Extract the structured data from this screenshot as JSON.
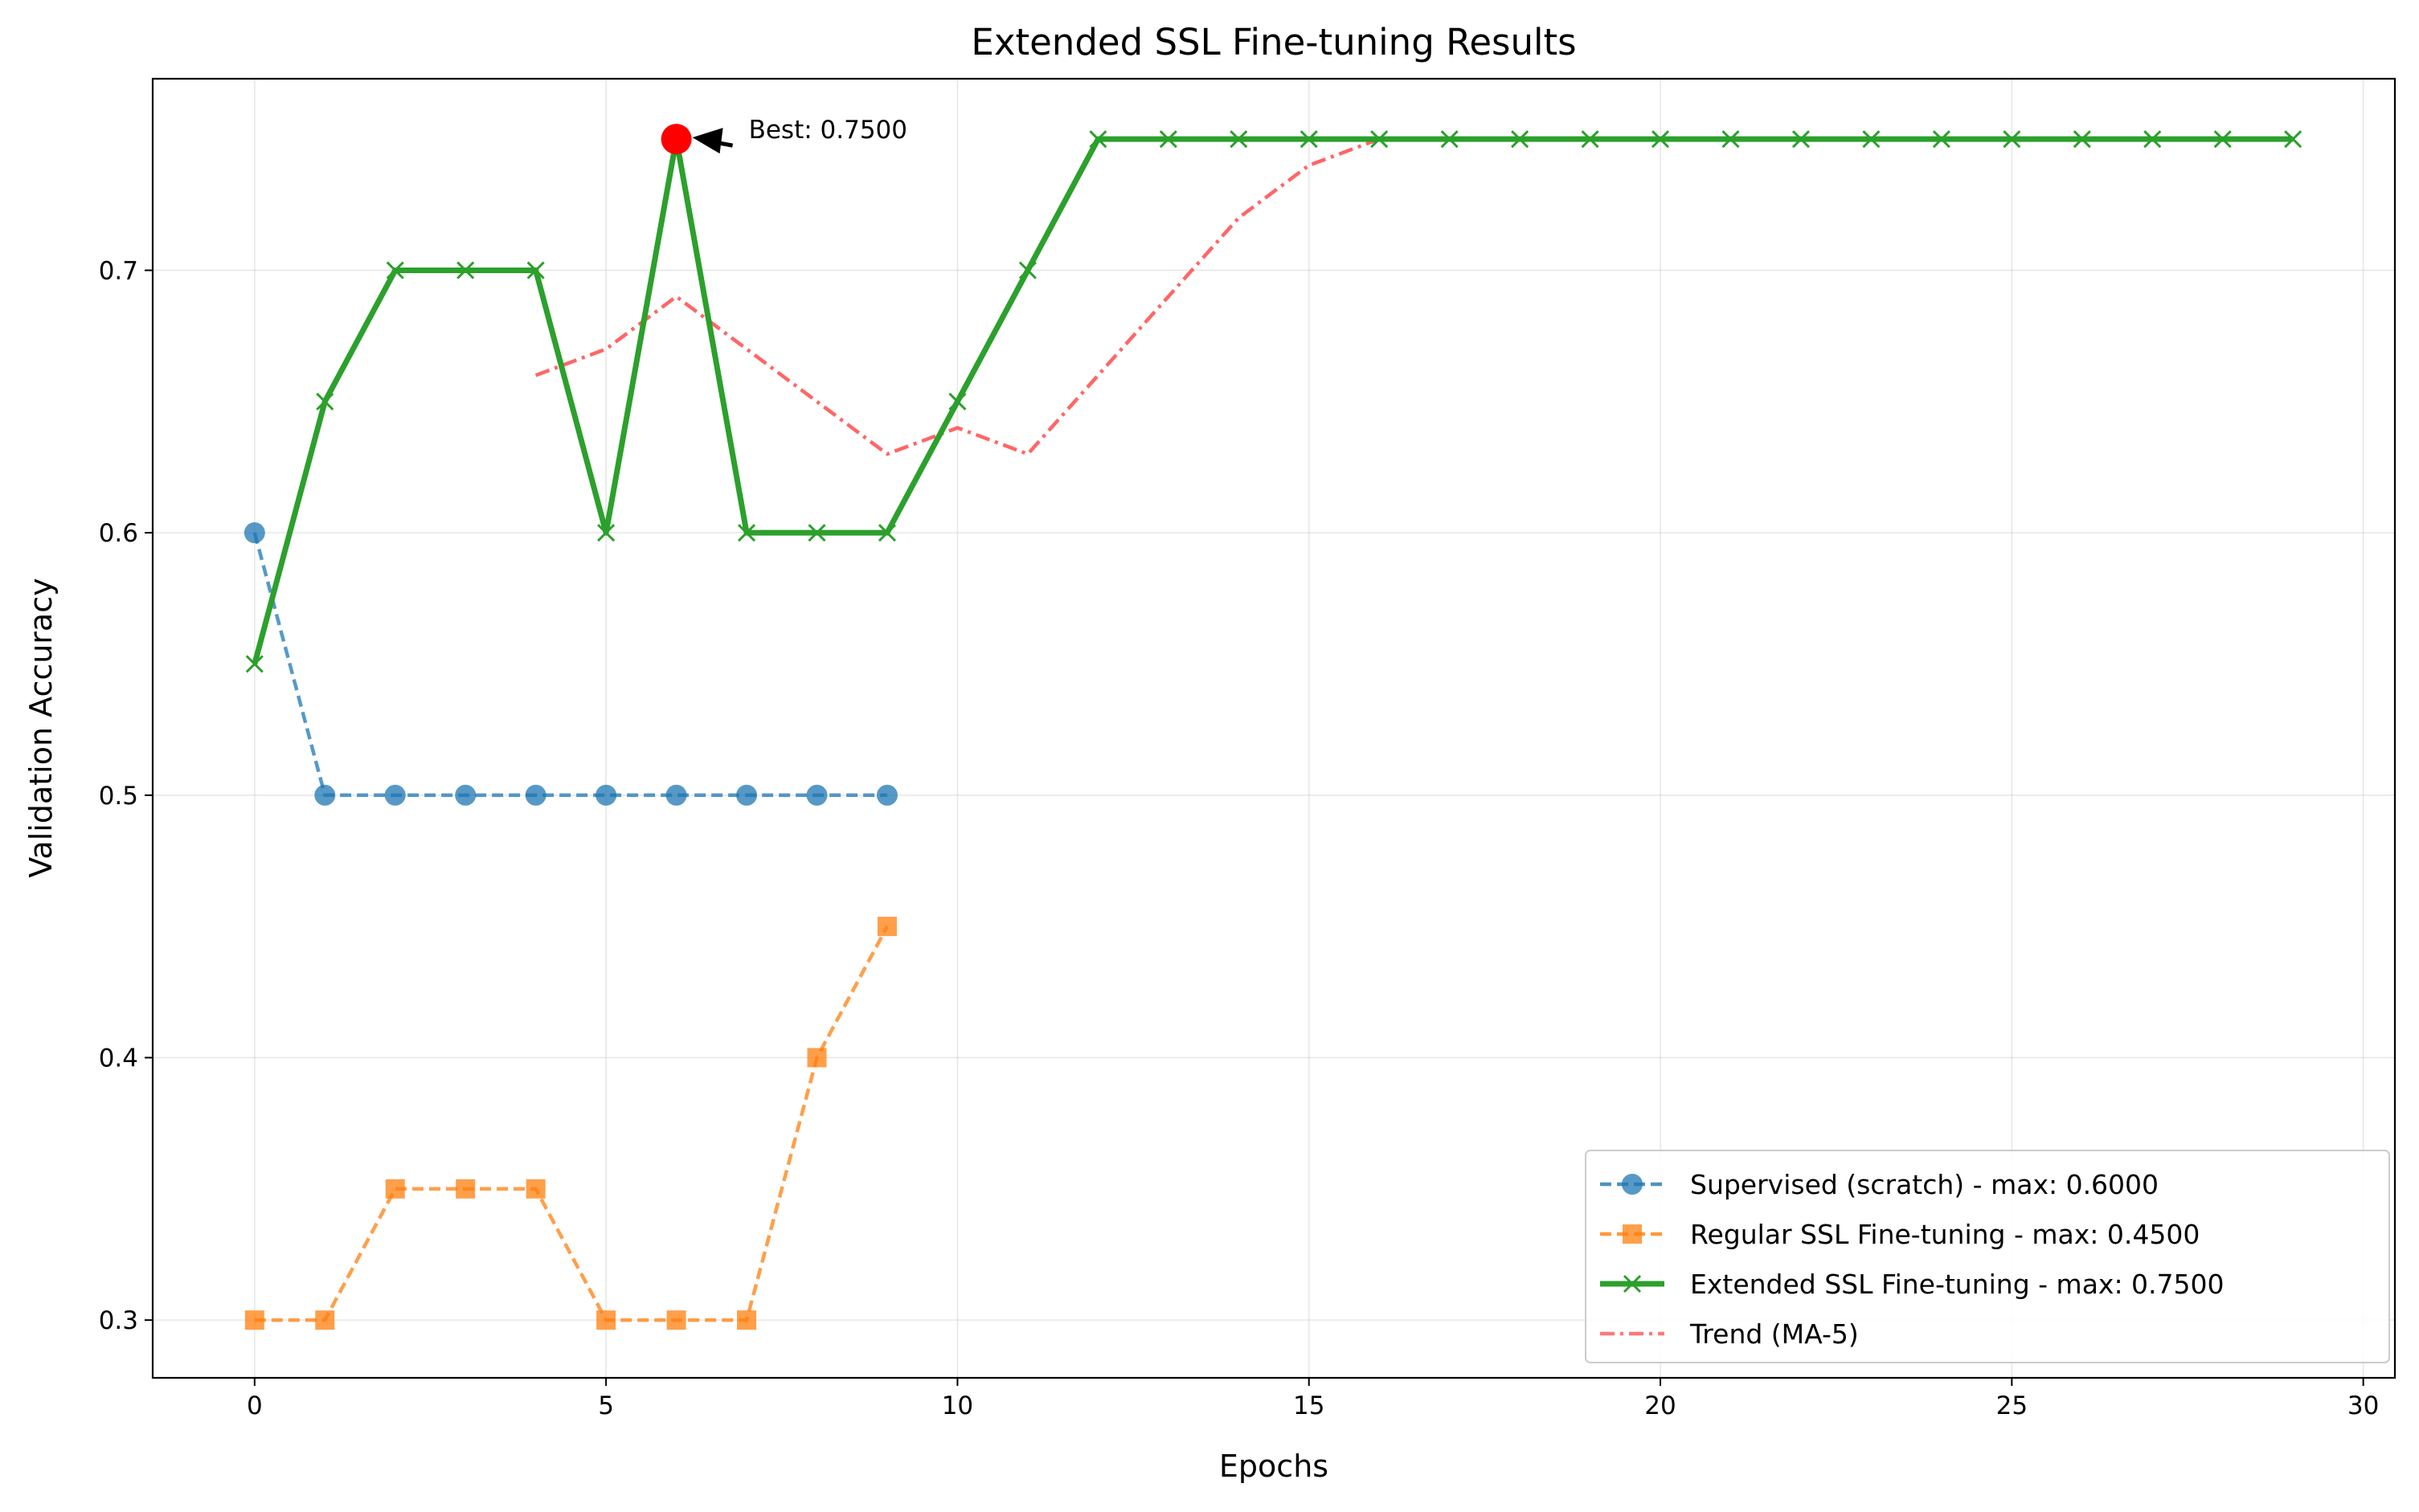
{
  "chart_data": {
    "type": "line",
    "title": "Extended SSL Fine-tuning Results",
    "xlabel": "Epochs",
    "ylabel": "Validation Accuracy",
    "xlim": [
      -1.45,
      30.45
    ],
    "ylim": [
      0.278,
      0.773
    ],
    "xticks": [
      0,
      5,
      10,
      15,
      20,
      25,
      30
    ],
    "yticks": [
      0.3,
      0.4,
      0.5,
      0.6,
      0.7
    ],
    "xtick_labels": [
      "0",
      "5",
      "10",
      "15",
      "20",
      "25",
      "30"
    ],
    "ytick_labels": [
      "0.3",
      "0.4",
      "0.5",
      "0.6",
      "0.7"
    ],
    "grid": true,
    "legend_position": "lower-right",
    "series": [
      {
        "name": "Supervised (scratch) - max: 0.6000",
        "color": "#1f77b4",
        "linestyle": "dashed",
        "marker": "circle",
        "x": [
          0,
          1,
          2,
          3,
          4,
          5,
          6,
          7,
          8,
          9
        ],
        "values": [
          0.6,
          0.5,
          0.5,
          0.5,
          0.5,
          0.5,
          0.5,
          0.5,
          0.5,
          0.5
        ]
      },
      {
        "name": "Regular SSL Fine-tuning - max: 0.4500",
        "color": "#ff7f0e",
        "linestyle": "dashed",
        "marker": "square",
        "x": [
          0,
          1,
          2,
          3,
          4,
          5,
          6,
          7,
          8,
          9
        ],
        "values": [
          0.3,
          0.3,
          0.35,
          0.35,
          0.35,
          0.3,
          0.3,
          0.3,
          0.4,
          0.45
        ]
      },
      {
        "name": "Extended SSL Fine-tuning - max: 0.7500",
        "color": "#2ca02c",
        "linestyle": "solid",
        "marker": "x",
        "x": [
          0,
          1,
          2,
          3,
          4,
          5,
          6,
          7,
          8,
          9,
          10,
          11,
          12,
          13,
          14,
          15,
          16,
          17,
          18,
          19,
          20,
          21,
          22,
          23,
          24,
          25,
          26,
          27,
          28,
          29
        ],
        "values": [
          0.55,
          0.65,
          0.7,
          0.7,
          0.7,
          0.6,
          0.75,
          0.6,
          0.6,
          0.6,
          0.65,
          0.7,
          0.75,
          0.75,
          0.75,
          0.75,
          0.75,
          0.75,
          0.75,
          0.75,
          0.75,
          0.75,
          0.75,
          0.75,
          0.75,
          0.75,
          0.75,
          0.75,
          0.75,
          0.75
        ]
      },
      {
        "name": "Trend (MA-5)",
        "color": "#ff5555",
        "linestyle": "dashdot",
        "marker": "none",
        "x": [
          4,
          5,
          6,
          7,
          8,
          9,
          10,
          11,
          12,
          13,
          14,
          15,
          16,
          17,
          18,
          19,
          20,
          21,
          22,
          23,
          24,
          25,
          26,
          27,
          28,
          29
        ],
        "values": [
          0.66,
          0.67,
          0.69,
          0.67,
          0.65,
          0.63,
          0.64,
          0.63,
          0.66,
          0.69,
          0.72,
          0.74,
          0.75,
          0.75,
          0.75,
          0.75,
          0.75,
          0.75,
          0.75,
          0.75,
          0.75,
          0.75,
          0.75,
          0.75,
          0.75,
          0.75
        ]
      }
    ],
    "annotation": {
      "text": "Best: 0.7500",
      "x": 6,
      "y": 0.75,
      "marker_color": "#ff0000"
    }
  }
}
